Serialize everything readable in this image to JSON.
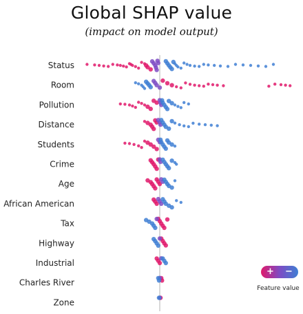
{
  "chart_data": {
    "type": "scatter",
    "title": "Global SHAP value",
    "subtitle": "(impact on model output)",
    "features": [
      "Status",
      "Room",
      "Pollution",
      "Distance",
      "Students",
      "Crime",
      "Age",
      "African American",
      "Tax",
      "Highway",
      "Industrial",
      "Charles River",
      "Zone"
    ],
    "xlim": [
      -5,
      9
    ],
    "baseline": 0,
    "grid": false,
    "legend": {
      "position": "bottom-right",
      "high_symbol": "+",
      "low_symbol": "−",
      "label": "Feature value"
    },
    "colors": {
      "high": "#e0196b",
      "mid": "#7e4cc4",
      "low": "#3f7fd3",
      "baseline": "#b0b0b0"
    },
    "rows": [
      {
        "feature": "Status",
        "pos": [
          -4.8,
          -4.3,
          -4.0,
          -3.7,
          -3.4,
          -3.1,
          -2.8,
          -2.6,
          -2.4,
          -2.2,
          -2.0,
          -1.9,
          -1.8,
          -1.6,
          -1.4,
          -1.2,
          -1.0,
          -0.9,
          -0.8,
          -0.6
        ],
        "mid": [
          -0.5,
          -0.4,
          -0.3,
          -0.25,
          -0.2,
          -0.15,
          -0.1
        ],
        "neg": [
          0.4,
          0.5,
          0.6,
          0.7,
          0.8,
          0.9,
          1.0,
          1.1,
          1.2,
          1.4,
          1.6,
          1.8,
          2.0,
          2.3,
          2.6,
          2.9,
          3.2,
          3.6,
          4.0,
          4.5,
          5.0,
          5.5,
          6.0,
          6.5,
          7.0,
          7.5
        ]
      },
      {
        "feature": "Room",
        "pos": [
          0.2,
          0.5,
          0.8,
          1.1,
          1.4,
          1.7,
          2.0,
          2.3,
          2.6,
          2.9,
          3.2,
          3.5,
          3.8,
          4.2,
          7.2,
          7.6,
          8.0,
          8.3,
          8.6
        ],
        "mid": [
          -0.4,
          -0.3,
          -0.2,
          0.0
        ],
        "neg": [
          -1.6,
          -1.4,
          -1.2,
          -1.1,
          -1.0,
          -0.9,
          -0.8,
          -0.7,
          -0.6
        ]
      },
      {
        "feature": "Pollution",
        "pos": [
          -2.6,
          -2.3,
          -2.0,
          -1.8,
          -1.6,
          -1.4,
          -1.2,
          -1.0,
          -0.8,
          -0.6,
          -0.4,
          -0.2
        ],
        "mid": [
          0.0,
          0.05,
          0.1
        ],
        "neg": [
          0.15,
          0.2,
          0.3,
          0.4,
          0.5,
          0.6,
          0.8,
          1.0,
          1.2,
          1.4,
          1.6,
          1.9
        ]
      },
      {
        "feature": "Distance",
        "pos": [
          -1.0,
          -0.8,
          -0.6,
          -0.5,
          -0.4,
          -0.3,
          -0.2
        ],
        "mid": [
          -0.1,
          0.0,
          0.05
        ],
        "neg": [
          0.1,
          0.2,
          0.3,
          0.4,
          0.6,
          0.8,
          1.0,
          1.3,
          1.6,
          1.9,
          2.2,
          2.6,
          3.0,
          3.4,
          3.8
        ]
      },
      {
        "feature": "Students",
        "pos": [
          -2.3,
          -2.0,
          -1.7,
          -1.4,
          -1.2,
          -1.0,
          -0.8,
          -0.6,
          -0.4,
          -0.2
        ],
        "mid": [
          -0.1,
          0.0
        ],
        "neg": [
          0.05,
          0.1,
          0.2,
          0.3,
          0.4,
          0.5,
          0.6,
          0.8,
          1.0
        ]
      },
      {
        "feature": "Crime",
        "pos": [
          -0.6,
          -0.5,
          -0.4,
          -0.3,
          -0.2,
          -0.1
        ],
        "mid": [
          0.0,
          0.05
        ],
        "neg": [
          0.2,
          0.3,
          0.4,
          0.5,
          0.6,
          0.8,
          1.0,
          1.1
        ]
      },
      {
        "feature": "Age",
        "pos": [
          -0.8,
          -0.6,
          -0.5,
          -0.4,
          -0.3,
          -0.2,
          -0.1,
          0.0
        ],
        "mid": [
          0.1,
          0.2
        ],
        "neg": [
          0.3,
          0.4,
          0.5,
          0.6,
          0.8,
          1.0
        ]
      },
      {
        "feature": "African American",
        "pos": [
          -0.4,
          -0.3,
          -0.2
        ],
        "mid": [
          -0.1,
          0.0,
          0.1
        ],
        "neg": [
          0.2,
          0.3,
          0.4,
          0.6,
          0.8,
          1.1,
          1.4
        ]
      },
      {
        "feature": "Tax",
        "pos": [
          -0.1,
          0.0,
          0.1,
          0.2,
          0.3,
          0.5
        ],
        "mid": [
          -0.2
        ],
        "neg": [
          -0.9,
          -0.7,
          -0.5,
          -0.4,
          -0.3
        ]
      },
      {
        "feature": "Highway",
        "pos": [
          0.1,
          0.2,
          0.3,
          0.4
        ],
        "mid": [
          0.0
        ],
        "neg": [
          -0.4,
          -0.3,
          -0.2,
          -0.1
        ]
      },
      {
        "feature": "Industrial",
        "pos": [
          -0.2,
          -0.1,
          0.0
        ],
        "mid": [
          0.1
        ],
        "neg": [
          0.2,
          0.3,
          0.4
        ]
      },
      {
        "feature": "Charles River",
        "pos": [
          0.1,
          0.15
        ],
        "mid": [
          0.0
        ],
        "neg": [
          -0.1,
          -0.05
        ]
      },
      {
        "feature": "Zone",
        "pos": [
          0.05
        ],
        "mid": [
          0.0
        ],
        "neg": [
          -0.05
        ]
      }
    ]
  }
}
